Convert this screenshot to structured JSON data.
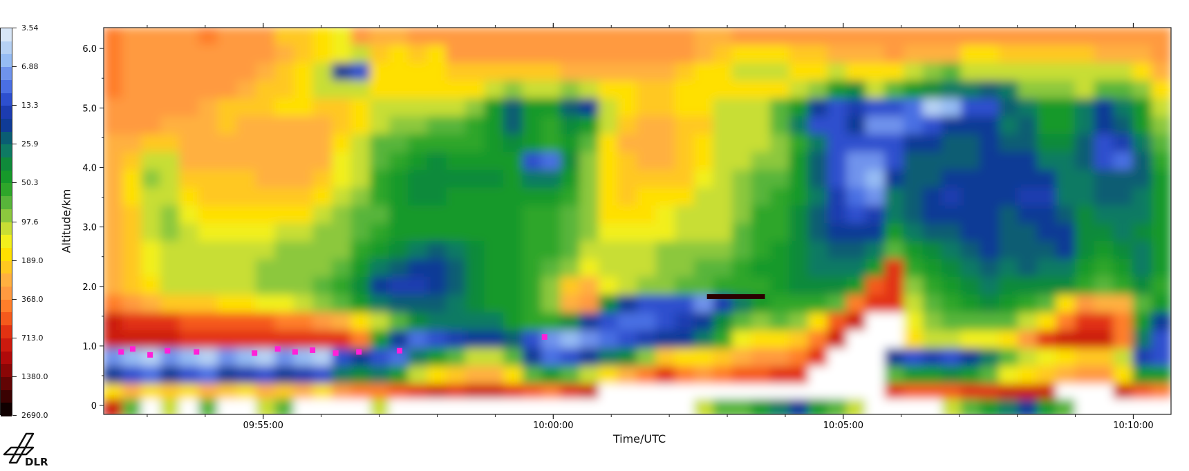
{
  "chart_data": {
    "type": "heatmap",
    "title": "",
    "xlabel": "Time/UTC",
    "ylabel": "Altitude/km",
    "x_range": [
      "09:52:15",
      "10:10:40"
    ],
    "x_ticks": [
      "09:55:00",
      "10:00:00",
      "10:05:00",
      "10:10:00"
    ],
    "x_tick_minutes": [
      2.75,
      7.75,
      12.75,
      17.75
    ],
    "x_span_minutes": 18.4,
    "ylim": [
      -0.15,
      6.35
    ],
    "y_ticks": [
      "0",
      "1.0",
      "2.0",
      "3.0",
      "4.0",
      "5.0",
      "6.0"
    ],
    "y_tick_values": [
      0,
      1,
      2,
      3,
      4,
      5,
      6
    ],
    "grid": false,
    "colorbar": {
      "labels": [
        "3.54",
        "6.88",
        "13.3",
        "25.9",
        "50.3",
        "97.6",
        "189.0",
        "368.0",
        "713.0",
        "1380.0",
        "2690.0"
      ],
      "colors": [
        "#d8e6f7",
        "#b6d1f4",
        "#96bcf4",
        "#6f93ec",
        "#4a6fe3",
        "#2d4fce",
        "#1c3cb0",
        "#0f3b96",
        "#0a5d73",
        "#0e7a63",
        "#0f8a3a",
        "#16992a",
        "#2ea62a",
        "#58b53a",
        "#8cc83e",
        "#c8de34",
        "#f2ef1c",
        "#ffe000",
        "#ffc820",
        "#ffb040",
        "#ff9a40",
        "#ff7e2a",
        "#f55a1c",
        "#e23212",
        "#cc1a0e",
        "#b00a0a",
        "#8a0606",
        "#620404",
        "#3a0202",
        "#100000"
      ]
    },
    "rows": [
      {
        "y": 6.2,
        "v": [
          8,
          9,
          9,
          9,
          9,
          8,
          9,
          9,
          9,
          11,
          11,
          12,
          13,
          9,
          10,
          10,
          9,
          9,
          9,
          9,
          9,
          9,
          9,
          9,
          9,
          9,
          9,
          9,
          9,
          9,
          9,
          10,
          10,
          9,
          9,
          9,
          9,
          9,
          9,
          9,
          9,
          9,
          9,
          9,
          9,
          9,
          9,
          9,
          9,
          9,
          9,
          9,
          9,
          9,
          9,
          9
        ]
      },
      {
        "y": 5.9,
        "v": [
          8,
          9,
          9,
          9,
          9,
          9,
          9,
          9,
          9,
          10,
          11,
          12,
          13,
          14,
          11,
          12,
          11,
          12,
          9,
          9,
          9,
          9,
          9,
          9,
          9,
          9,
          9,
          9,
          9,
          9,
          9,
          10,
          11,
          12,
          12,
          12,
          11,
          11,
          10,
          10,
          10,
          9,
          10,
          10,
          10,
          12,
          12,
          11,
          11,
          11,
          11,
          11,
          10,
          10,
          10,
          9
        ]
      },
      {
        "y": 5.6,
        "v": [
          8,
          9,
          9,
          9,
          9,
          9,
          9,
          9,
          10,
          11,
          12,
          14,
          22,
          24,
          12,
          12,
          12,
          12,
          11,
          11,
          11,
          11,
          11,
          11,
          10,
          10,
          10,
          10,
          10,
          10,
          11,
          12,
          12,
          14,
          14,
          14,
          12,
          12,
          14,
          12,
          12,
          12,
          14,
          15,
          16,
          14,
          14,
          14,
          14,
          14,
          14,
          14,
          14,
          14,
          12,
          10
        ]
      },
      {
        "y": 5.3,
        "v": [
          8,
          9,
          9,
          9,
          9,
          9,
          9,
          10,
          11,
          11,
          12,
          14,
          14,
          14,
          12,
          12,
          12,
          12,
          12,
          12,
          14,
          15,
          14,
          14,
          15,
          14,
          12,
          12,
          11,
          11,
          12,
          12,
          12,
          12,
          12,
          12,
          14,
          15,
          18,
          19,
          14,
          16,
          18,
          19,
          20,
          20,
          21,
          20,
          15,
          15,
          15,
          14,
          16,
          16,
          15,
          12
        ]
      },
      {
        "y": 5.0,
        "v": [
          9,
          9,
          9,
          9,
          9,
          10,
          11,
          11,
          11,
          12,
          12,
          11,
          11,
          12,
          14,
          14,
          14,
          14,
          14,
          15,
          18,
          21,
          18,
          18,
          21,
          22,
          14,
          12,
          11,
          11,
          12,
          12,
          14,
          14,
          14,
          16,
          18,
          22,
          24,
          23,
          24,
          24,
          25,
          28,
          27,
          24,
          24,
          21,
          20,
          18,
          18,
          20,
          22,
          20,
          18,
          14
        ]
      },
      {
        "y": 4.7,
        "v": [
          9,
          9,
          9,
          10,
          10,
          10,
          11,
          10,
          10,
          10,
          10,
          10,
          11,
          12,
          14,
          15,
          15,
          16,
          16,
          17,
          18,
          21,
          18,
          17,
          19,
          18,
          14,
          11,
          10,
          10,
          11,
          11,
          14,
          14,
          14,
          16,
          20,
          24,
          24,
          22,
          26,
          26,
          25,
          24,
          22,
          22,
          22,
          20,
          21,
          18,
          18,
          20,
          22,
          21,
          18,
          15
        ]
      },
      {
        "y": 4.4,
        "v": [
          10,
          10,
          11,
          11,
          10,
          10,
          10,
          10,
          10,
          10,
          10,
          10,
          12,
          14,
          16,
          16,
          17,
          17,
          17,
          17,
          18,
          19,
          18,
          17,
          18,
          16,
          12,
          10,
          10,
          10,
          11,
          12,
          14,
          14,
          14,
          15,
          17,
          20,
          24,
          24,
          24,
          24,
          22,
          22,
          21,
          21,
          22,
          21,
          21,
          19,
          19,
          21,
          24,
          23,
          20,
          16
        ]
      },
      {
        "y": 4.1,
        "v": [
          10,
          11,
          14,
          14,
          10,
          10,
          10,
          10,
          10,
          10,
          10,
          10,
          13,
          14,
          16,
          17,
          18,
          19,
          18,
          18,
          18,
          18,
          24,
          25,
          19,
          15,
          12,
          11,
          10,
          10,
          11,
          12,
          14,
          14,
          15,
          15,
          18,
          21,
          24,
          26,
          26,
          24,
          21,
          21,
          21,
          21,
          22,
          22,
          22,
          20,
          20,
          21,
          24,
          25,
          21,
          17
        ]
      },
      {
        "y": 3.8,
        "v": [
          10,
          12,
          15,
          14,
          11,
          11,
          11,
          11,
          10,
          10,
          10,
          11,
          13,
          14,
          17,
          18,
          19,
          19,
          19,
          19,
          19,
          18,
          20,
          20,
          18,
          15,
          12,
          11,
          11,
          11,
          11,
          13,
          14,
          15,
          16,
          16,
          18,
          21,
          24,
          26,
          27,
          22,
          21,
          21,
          22,
          22,
          22,
          22,
          22,
          22,
          20,
          20,
          21,
          21,
          21,
          18
        ]
      },
      {
        "y": 3.5,
        "v": [
          10,
          12,
          14,
          14,
          12,
          11,
          11,
          11,
          11,
          11,
          11,
          12,
          14,
          15,
          17,
          18,
          19,
          19,
          18,
          18,
          18,
          18,
          18,
          18,
          17,
          15,
          12,
          11,
          12,
          12,
          12,
          14,
          14,
          15,
          16,
          17,
          18,
          20,
          23,
          25,
          26,
          20,
          21,
          22,
          23,
          22,
          22,
          22,
          23,
          23,
          20,
          20,
          21,
          21,
          20,
          18
        ]
      },
      {
        "y": 3.2,
        "v": [
          10,
          11,
          14,
          15,
          13,
          12,
          12,
          12,
          12,
          12,
          12,
          14,
          15,
          16,
          16,
          18,
          18,
          18,
          18,
          18,
          18,
          18,
          17,
          17,
          16,
          15,
          12,
          12,
          12,
          13,
          14,
          14,
          14,
          15,
          17,
          17,
          19,
          21,
          23,
          24,
          23,
          20,
          21,
          22,
          22,
          22,
          22,
          21,
          22,
          22,
          21,
          19,
          20,
          20,
          20,
          18
        ]
      },
      {
        "y": 2.9,
        "v": [
          10,
          11,
          14,
          15,
          14,
          13,
          13,
          13,
          13,
          14,
          14,
          15,
          15,
          16,
          17,
          18,
          18,
          18,
          18,
          18,
          18,
          18,
          17,
          17,
          16,
          15,
          13,
          13,
          13,
          13,
          14,
          14,
          14,
          16,
          17,
          17,
          19,
          21,
          22,
          22,
          22,
          18,
          20,
          21,
          21,
          22,
          22,
          21,
          21,
          22,
          22,
          19,
          19,
          20,
          19,
          18
        ]
      },
      {
        "y": 2.6,
        "v": [
          10,
          11,
          13,
          14,
          14,
          14,
          14,
          14,
          14,
          15,
          15,
          15,
          15,
          17,
          18,
          19,
          20,
          21,
          20,
          19,
          18,
          18,
          17,
          17,
          16,
          14,
          14,
          14,
          14,
          15,
          15,
          15,
          15,
          16,
          17,
          18,
          19,
          20,
          21,
          21,
          20,
          16,
          18,
          19,
          20,
          21,
          22,
          21,
          21,
          21,
          22,
          19,
          18,
          19,
          20,
          18
        ]
      },
      {
        "y": 2.3,
        "v": [
          10,
          11,
          13,
          14,
          14,
          14,
          14,
          14,
          15,
          15,
          15,
          15,
          16,
          18,
          20,
          21,
          22,
          22,
          21,
          19,
          18,
          18,
          17,
          16,
          15,
          13,
          14,
          14,
          14,
          15,
          15,
          16,
          16,
          17,
          18,
          18,
          19,
          20,
          20,
          20,
          18,
          6,
          17,
          18,
          19,
          20,
          21,
          20,
          21,
          20,
          20,
          18,
          17,
          18,
          20,
          18
        ]
      },
      {
        "y": 2.0,
        "v": [
          10,
          11,
          12,
          14,
          14,
          14,
          14,
          14,
          15,
          15,
          15,
          16,
          17,
          19,
          22,
          23,
          23,
          22,
          21,
          19,
          18,
          18,
          17,
          15,
          11,
          10,
          13,
          14,
          15,
          15,
          16,
          16,
          17,
          17,
          17,
          18,
          19,
          19,
          19,
          18,
          7,
          6,
          15,
          17,
          18,
          19,
          20,
          19,
          19,
          19,
          19,
          17,
          16,
          17,
          19,
          17
        ]
      },
      {
        "y": 1.7,
        "v": [
          8,
          9,
          10,
          11,
          11,
          11,
          12,
          12,
          13,
          13,
          14,
          15,
          16,
          18,
          20,
          21,
          21,
          21,
          20,
          19,
          18,
          18,
          17,
          15,
          10,
          9,
          19,
          22,
          24,
          24,
          24,
          26,
          23,
          20,
          18,
          17,
          17,
          17,
          16,
          8,
          6,
          6,
          14,
          16,
          17,
          18,
          19,
          18,
          17,
          16,
          12,
          9,
          10,
          10,
          16,
          18
        ]
      },
      {
        "y": 1.4,
        "v": [
          5,
          6,
          6,
          6,
          7,
          7,
          7,
          7,
          7,
          8,
          8,
          9,
          10,
          12,
          14,
          16,
          19,
          20,
          20,
          20,
          20,
          18,
          17,
          17,
          19,
          22,
          24,
          25,
          25,
          24,
          23,
          22,
          19,
          16,
          15,
          16,
          15,
          12,
          7,
          5,
          4,
          4,
          13,
          15,
          16,
          16,
          16,
          16,
          14,
          12,
          8,
          6,
          6,
          8,
          18,
          22
        ]
      },
      {
        "y": 1.1,
        "v": [
          5,
          5,
          5,
          5,
          6,
          6,
          6,
          6,
          6,
          6,
          6,
          6,
          6,
          8,
          18,
          22,
          25,
          24,
          23,
          22,
          22,
          21,
          24,
          26,
          27,
          26,
          25,
          24,
          23,
          22,
          22,
          20,
          17,
          13,
          12,
          12,
          11,
          8,
          5,
          4,
          4,
          4,
          12,
          14,
          14,
          13,
          13,
          12,
          9,
          6,
          5,
          5,
          5,
          8,
          20,
          24
        ]
      },
      {
        "y": 0.8,
        "v": [
          26,
          27,
          28,
          26,
          27,
          28,
          26,
          27,
          28,
          26,
          27,
          28,
          24,
          22,
          24,
          25,
          20,
          18,
          16,
          14,
          14,
          16,
          22,
          25,
          24,
          22,
          20,
          19,
          15,
          11,
          12,
          12,
          11,
          10,
          9,
          9,
          8,
          6,
          4,
          4,
          4,
          22,
          24,
          23,
          24,
          22,
          20,
          16,
          14,
          13,
          12,
          11,
          11,
          14,
          23,
          24
        ]
      },
      {
        "y": 0.5,
        "v": [
          22,
          24,
          25,
          22,
          24,
          25,
          22,
          23,
          24,
          22,
          23,
          24,
          20,
          19,
          20,
          18,
          14,
          12,
          11,
          10,
          10,
          12,
          16,
          18,
          16,
          14,
          12,
          10,
          8,
          6,
          8,
          9,
          8,
          7,
          7,
          6,
          6,
          4,
          4,
          4,
          4,
          16,
          18,
          18,
          19,
          18,
          16,
          13,
          12,
          11,
          10,
          9,
          9,
          12,
          18,
          18
        ]
      },
      {
        "y": 0.2,
        "v": [
          12,
          10,
          12,
          11,
          12,
          10,
          11,
          12,
          10,
          11,
          10,
          12,
          9,
          8,
          8,
          7,
          6,
          5,
          6,
          5,
          5,
          6,
          7,
          8,
          6,
          5,
          4,
          4,
          4,
          4,
          4,
          4,
          4,
          4,
          4,
          4,
          4,
          4,
          4,
          4,
          4,
          6,
          7,
          7,
          7,
          6,
          6,
          5,
          5,
          5,
          4,
          4,
          4,
          5,
          7,
          8
        ]
      },
      {
        "y": -0.05,
        "v": [
          5,
          16,
          4,
          14,
          4,
          16,
          4,
          4,
          14,
          16,
          4,
          4,
          4,
          4,
          14,
          4,
          4,
          4,
          4,
          4,
          4,
          4,
          4,
          4,
          4,
          4,
          4,
          4,
          4,
          4,
          4,
          14,
          16,
          16,
          18,
          20,
          22,
          18,
          16,
          14,
          4,
          4,
          4,
          4,
          14,
          16,
          18,
          20,
          22,
          18,
          16,
          4,
          4,
          4,
          4,
          4
        ]
      }
    ],
    "annotations": "magenta speckles near 0.8–1.0 km (09:52–09:58) and small magenta patch near 10:00; dark brown band near 1.8 km around 10:02–10:03"
  },
  "logo": {
    "text": "DLR"
  }
}
